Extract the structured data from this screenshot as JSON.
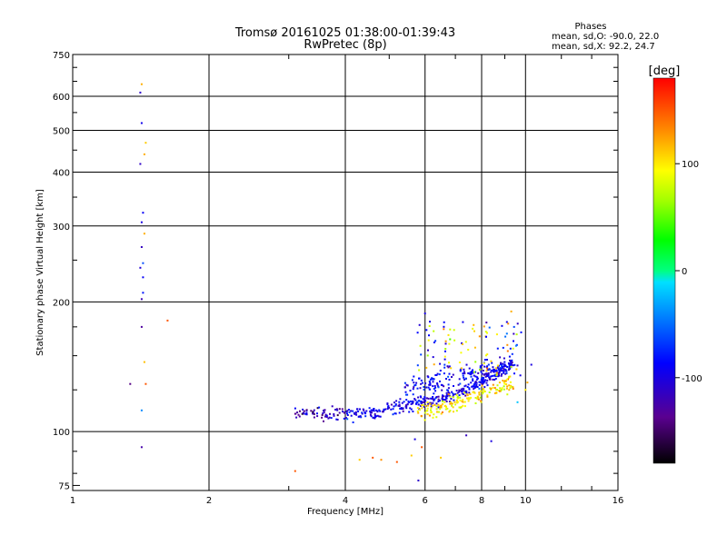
{
  "chart_data": {
    "type": "scatter",
    "title": "Tromsø 20161025 01:38:00-01:39:43",
    "subtitle": "RwPretec (8p)",
    "xlabel": "Frequency [MHz]",
    "ylabel": "Stationary phase Virtual Height [km]",
    "x_scale": "log",
    "y_scale": "log",
    "xlim": [
      1,
      16
    ],
    "ylim": [
      73,
      750
    ],
    "x_ticks": [
      1,
      2,
      4,
      6,
      8,
      10,
      16
    ],
    "y_ticks": [
      75,
      100,
      200,
      300,
      400,
      500,
      600,
      750
    ],
    "grid": true,
    "legend": {
      "heading": "Phases",
      "line_o": "mean, sd,O: -90.0, 22.0",
      "line_x": "mean, sd,X:  92.2, 24.7"
    },
    "colorbar": {
      "unit": "[deg]",
      "range": [
        -180,
        180
      ],
      "ticks": [
        100,
        0,
        -100
      ]
    },
    "series": [
      {
        "points": [
          [
            1.42,
            640,
            120
          ],
          [
            1.41,
            612,
            -110
          ],
          [
            1.42,
            520,
            -95
          ],
          [
            1.45,
            468,
            110
          ],
          [
            1.44,
            440,
            120
          ],
          [
            1.41,
            418,
            -112
          ],
          [
            1.43,
            322,
            -90
          ],
          [
            1.42,
            306,
            -100
          ],
          [
            1.44,
            288,
            120
          ],
          [
            1.42,
            268,
            -115
          ],
          [
            1.43,
            246,
            -60
          ],
          [
            1.41,
            240,
            -105
          ],
          [
            1.43,
            228,
            -90
          ],
          [
            1.43,
            210,
            -80
          ],
          [
            1.42,
            203,
            -120
          ],
          [
            1.42,
            175,
            -130
          ],
          [
            1.62,
            181,
            150
          ],
          [
            1.44,
            145,
            115
          ],
          [
            1.34,
            129,
            -140
          ],
          [
            1.45,
            129,
            150
          ],
          [
            1.42,
            112,
            -40
          ],
          [
            1.42,
            92,
            -125
          ],
          [
            3.1,
            81,
            150
          ],
          [
            4.3,
            86,
            110
          ],
          [
            4.6,
            87,
            150
          ],
          [
            4.8,
            86,
            130
          ],
          [
            5.2,
            85,
            150
          ],
          [
            5.6,
            88,
            110
          ],
          [
            5.9,
            92,
            150
          ],
          [
            6.5,
            87,
            110
          ],
          [
            5.7,
            96,
            -100
          ],
          [
            5.8,
            77,
            -110
          ],
          [
            7.4,
            98,
            -115
          ],
          [
            8.4,
            95,
            -100
          ],
          [
            6.0,
            188,
            -100
          ],
          [
            9.3,
            190,
            120
          ],
          [
            10.3,
            143,
            -100
          ],
          [
            10.1,
            130,
            120
          ],
          [
            10.0,
            125,
            100
          ],
          [
            9.6,
            117,
            -20
          ]
        ]
      }
    ]
  }
}
